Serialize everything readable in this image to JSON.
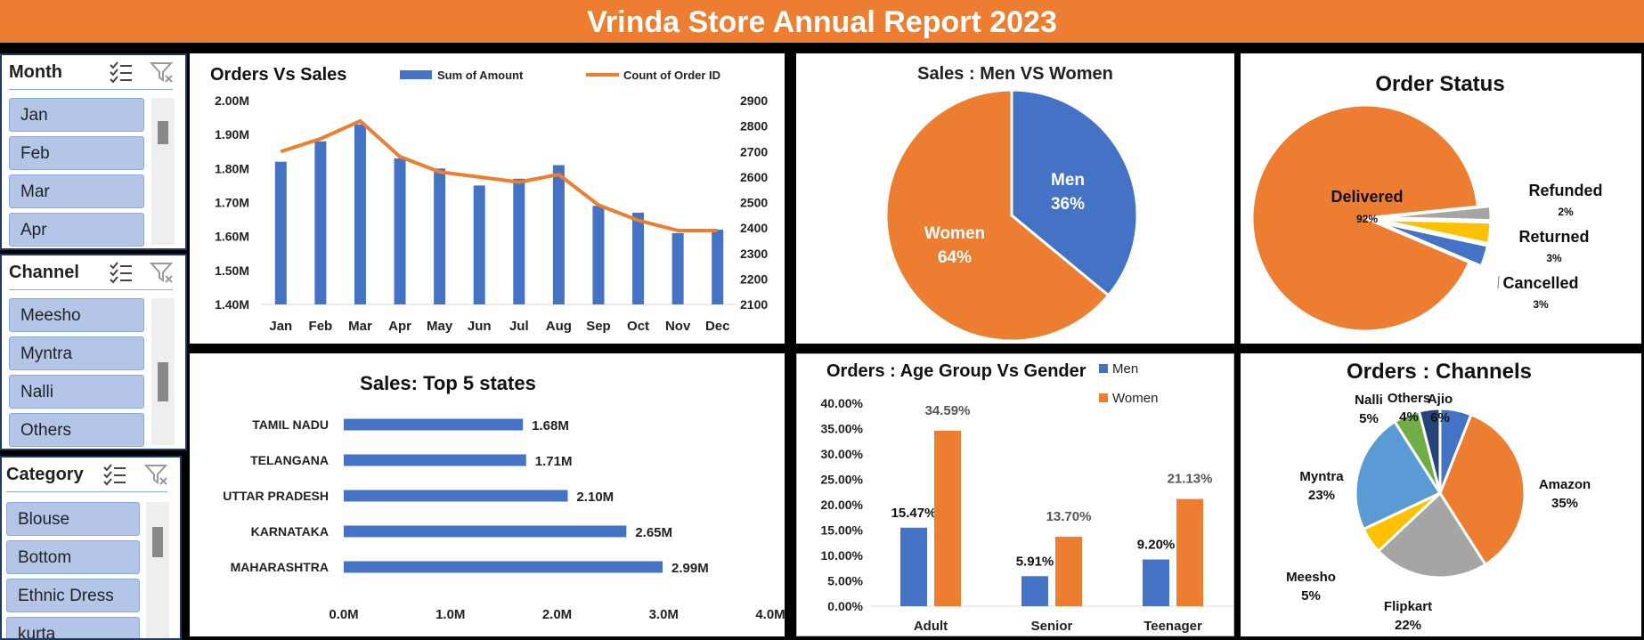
{
  "header": {
    "title": "Vrinda Store Annual Report 2023"
  },
  "slicers": [
    {
      "title": "Month",
      "items": [
        "Jan",
        "Feb",
        "Mar",
        "Apr"
      ]
    },
    {
      "title": "Channel",
      "items": [
        "Meesho",
        "Myntra",
        "Nalli",
        "Others"
      ]
    },
    {
      "title": "Category",
      "items": [
        "Blouse",
        "Bottom",
        "Ethnic Dress",
        "kurta"
      ]
    }
  ],
  "colors": {
    "accent": "#ed7d31",
    "blue": "#4472c4",
    "gray": "#a5a5a5",
    "yellow": "#ffc000",
    "lightblue": "#5b9bd5",
    "green": "#70ad47",
    "navy": "#264478"
  },
  "chart_data": [
    {
      "id": "orders_vs_sales",
      "type": "bar+line",
      "title": "Orders Vs Sales",
      "categories": [
        "Jan",
        "Feb",
        "Mar",
        "Apr",
        "May",
        "Jun",
        "Jul",
        "Aug",
        "Sep",
        "Oct",
        "Nov",
        "Dec"
      ],
      "series": [
        {
          "name": "Sum of Amount",
          "type": "bar",
          "axis": "left",
          "values": [
            1.82,
            1.88,
            1.93,
            1.83,
            1.8,
            1.75,
            1.77,
            1.81,
            1.69,
            1.67,
            1.61,
            1.62
          ]
        },
        {
          "name": "Count of Order ID",
          "type": "line",
          "axis": "right",
          "values": [
            2700,
            2750,
            2820,
            2680,
            2620,
            2600,
            2580,
            2610,
            2490,
            2430,
            2390,
            2390
          ]
        }
      ],
      "y_left": {
        "ticks": [
          "2.00M",
          "1.90M",
          "1.80M",
          "1.70M",
          "1.60M",
          "1.50M",
          "1.40M"
        ],
        "min": 1.4,
        "max": 2.0
      },
      "y_right": {
        "ticks": [
          "2900",
          "2800",
          "2700",
          "2600",
          "2500",
          "2400",
          "2300",
          "2200",
          "2100"
        ],
        "min": 2100,
        "max": 2900
      },
      "legend": "top"
    },
    {
      "id": "sales_men_women",
      "type": "pie",
      "title": "Sales : Men VS Women",
      "slices": [
        {
          "label": "Men",
          "value": 36,
          "text": "36%"
        },
        {
          "label": "Women",
          "value": 64,
          "text": "64%"
        }
      ]
    },
    {
      "id": "order_status",
      "type": "pie",
      "title": "Order Status",
      "slices": [
        {
          "label": "Delivered",
          "value": 92,
          "text": "92%"
        },
        {
          "label": "Refunded",
          "value": 2,
          "text": "2%"
        },
        {
          "label": "Returned",
          "value": 3,
          "text": "3%"
        },
        {
          "label": "Cancelled",
          "value": 3,
          "text": "3%"
        }
      ]
    },
    {
      "id": "top5_states",
      "type": "bar",
      "orientation": "horizontal",
      "title": "Sales: Top 5 states",
      "categories": [
        "TAMIL NADU",
        "TELANGANA",
        "UTTAR PRADESH",
        "KARNATAKA",
        "MAHARASHTRA"
      ],
      "values": [
        1.68,
        1.71,
        2.1,
        2.65,
        2.99
      ],
      "value_labels": [
        "1.68M",
        "1.71M",
        "2.10M",
        "2.65M",
        "2.99M"
      ],
      "x_ticks": [
        "0.0M",
        "1.0M",
        "2.0M",
        "3.0M",
        "4.0M"
      ],
      "xlim": [
        0,
        4
      ]
    },
    {
      "id": "age_gender",
      "type": "bar",
      "title": "Orders : Age Group Vs Gender",
      "categories": [
        "Adult",
        "Senior",
        "Teenager"
      ],
      "series": [
        {
          "name": "Men",
          "values": [
            15.47,
            5.91,
            9.2
          ],
          "labels": [
            "15.47%",
            "5.91%",
            "9.20%"
          ]
        },
        {
          "name": "Women",
          "values": [
            34.59,
            13.7,
            21.13
          ],
          "labels": [
            "34.59%",
            "13.70%",
            "21.13%"
          ]
        }
      ],
      "y_ticks": [
        "40.00%",
        "35.00%",
        "30.00%",
        "25.00%",
        "20.00%",
        "15.00%",
        "10.00%",
        "5.00%",
        "0.00%"
      ],
      "ylim": [
        0,
        40
      ],
      "legend": "top-right"
    },
    {
      "id": "orders_channels",
      "type": "pie",
      "title": "Orders : Channels",
      "slices": [
        {
          "label": "Ajio",
          "value": 6,
          "text": "6%"
        },
        {
          "label": "Amazon",
          "value": 35,
          "text": "35%"
        },
        {
          "label": "Flipkart",
          "value": 22,
          "text": "22%"
        },
        {
          "label": "Meesho",
          "value": 5,
          "text": "5%"
        },
        {
          "label": "Myntra",
          "value": 23,
          "text": "23%"
        },
        {
          "label": "Nalli",
          "value": 5,
          "text": "5%"
        },
        {
          "label": "Others",
          "value": 4,
          "text": "4%"
        }
      ]
    }
  ]
}
